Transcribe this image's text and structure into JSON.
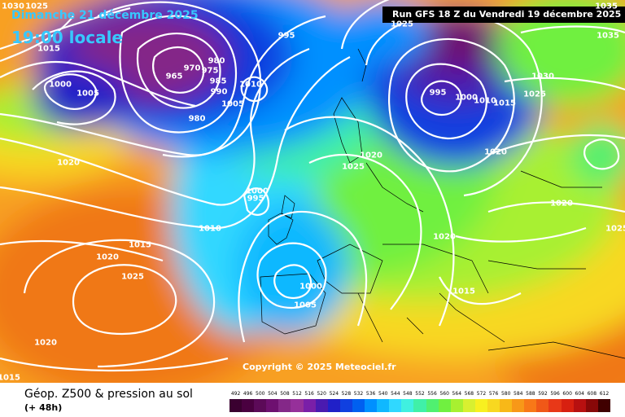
{
  "header": {
    "valid_date": "Dimanche 21 décembre 2025",
    "valid_time": "19:00 locale",
    "run_label": "Run GFS 18 Z du Vendredi 19 décembre 2025"
  },
  "copyright": "Copyright © 2025 Meteociel.fr",
  "footer": {
    "title": "Géop. Z500 & pression au sol",
    "lead_time": "(+ 48h)"
  },
  "isobar_labels": [
    {
      "text": "1030"
    },
    {
      "text": "1025"
    },
    {
      "text": "1015"
    },
    {
      "text": "1000"
    },
    {
      "text": "1005"
    },
    {
      "text": "995"
    },
    {
      "text": "965"
    },
    {
      "text": "970"
    },
    {
      "text": "980"
    },
    {
      "text": "985"
    },
    {
      "text": "990"
    },
    {
      "text": "975"
    },
    {
      "text": "1010"
    },
    {
      "text": "1005"
    },
    {
      "text": "980"
    },
    {
      "text": "1025"
    },
    {
      "text": "995"
    },
    {
      "text": "1000"
    },
    {
      "text": "1010"
    },
    {
      "text": "1015"
    },
    {
      "text": "1035"
    },
    {
      "text": "1030"
    },
    {
      "text": "1035"
    },
    {
      "text": "1025"
    },
    {
      "text": "1020"
    },
    {
      "text": "1020"
    },
    {
      "text": "1025"
    },
    {
      "text": "1020"
    },
    {
      "text": "1000"
    },
    {
      "text": "995"
    },
    {
      "text": "1010"
    },
    {
      "text": "1015"
    },
    {
      "text": "1020"
    },
    {
      "text": "1025"
    },
    {
      "text": "1000"
    },
    {
      "text": "1005"
    },
    {
      "text": "1020"
    },
    {
      "text": "1015"
    },
    {
      "text": "1020"
    },
    {
      "text": "1015"
    },
    {
      "text": "1020"
    },
    {
      "text": "1025"
    }
  ],
  "legend": {
    "values": [
      "492",
      "496",
      "500",
      "504",
      "508",
      "512",
      "516",
      "520",
      "524",
      "528",
      "532",
      "536",
      "540",
      "544",
      "548",
      "552",
      "556",
      "560",
      "564",
      "568",
      "572",
      "576",
      "580",
      "584",
      "588",
      "592",
      "596",
      "600",
      "604",
      "608",
      "612"
    ],
    "colors": [
      "#3a0030",
      "#4a0040",
      "#5c0a58",
      "#6e1070",
      "#842888",
      "#96309a",
      "#7a1fa8",
      "#4a1ab0",
      "#2020c8",
      "#1040e0",
      "#0060f0",
      "#0090ff",
      "#10b8ff",
      "#30d8ff",
      "#40f0e0",
      "#40f0a8",
      "#50f070",
      "#70f040",
      "#a8f030",
      "#d8f030",
      "#f8f020",
      "#f8d820",
      "#f8b818",
      "#f89818",
      "#f87818",
      "#f05818",
      "#e83818",
      "#d82010",
      "#b81010",
      "#880808",
      "#400000"
    ]
  }
}
